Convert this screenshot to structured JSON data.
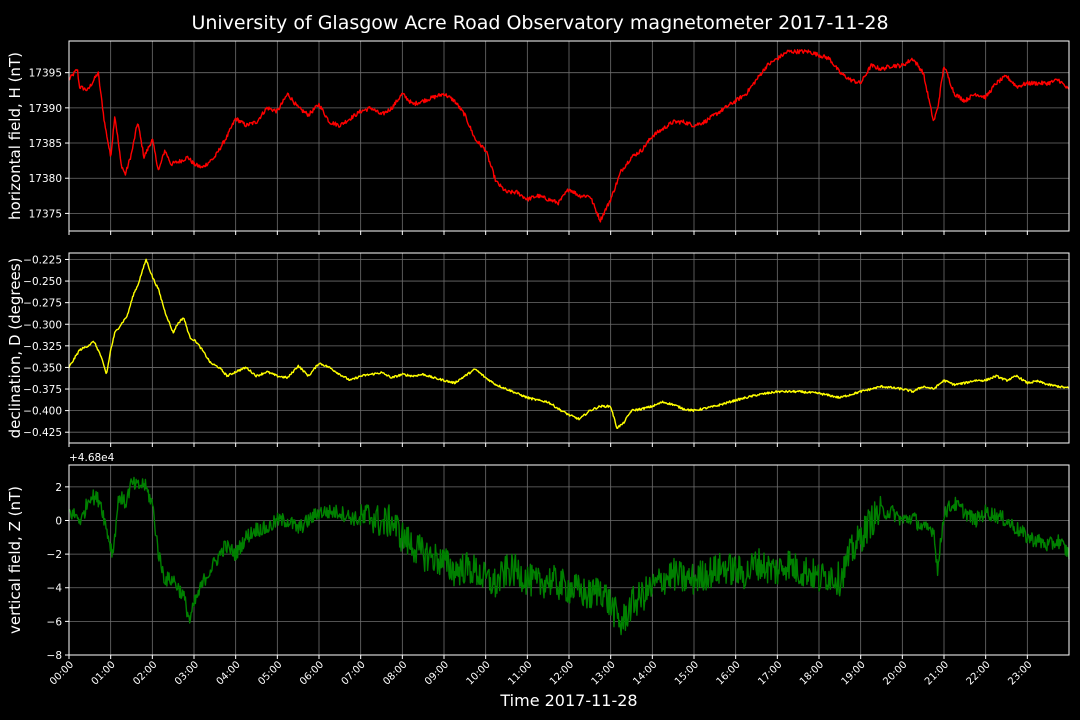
{
  "figure": {
    "title": "University of Glasgow Acre Road Observatory magnetometer 2017-11-28",
    "xlabel": "Time 2017-11-28",
    "background": "#000000",
    "axis_color": "#ffffff",
    "grid_color": "#6e6e6e"
  },
  "chart_data": [
    {
      "type": "line",
      "ylabel": "horizontal field, H (nT)",
      "offset_label": "",
      "color": "#ff0000",
      "grid": true,
      "xlim": [
        0,
        24
      ],
      "ylim": [
        17372.5,
        17399.5
      ],
      "yticks": [
        17375,
        17380,
        17385,
        17390,
        17395
      ],
      "yticklabels": [
        "17375",
        "17380",
        "17385",
        "17390",
        "17395"
      ],
      "series": [
        {
          "x": [
            0,
            0.2,
            0.25,
            0.45,
            0.7,
            0.85,
            1.0,
            1.1,
            1.25,
            1.35,
            1.5,
            1.65,
            1.8,
            2.0,
            2.15,
            2.3,
            2.45,
            2.7,
            2.85,
            3.0,
            3.2,
            3.5,
            3.8,
            4.0,
            4.25,
            4.5,
            4.75,
            5.0,
            5.25,
            5.5,
            5.75,
            6.0,
            6.25,
            6.5,
            6.75,
            7.0,
            7.25,
            7.5,
            7.75,
            8.0,
            8.25,
            8.5,
            8.75,
            9.0,
            9.25,
            9.5,
            9.75,
            10.0,
            10.25,
            10.5,
            10.75,
            11.0,
            11.25,
            11.5,
            11.75,
            12.0,
            12.25,
            12.5,
            12.75,
            13.0,
            13.25,
            13.5,
            13.75,
            14.0,
            14.25,
            14.5,
            14.75,
            15.0,
            15.25,
            15.5,
            15.75,
            16.0,
            16.25,
            16.5,
            16.75,
            17.0,
            17.25,
            17.5,
            17.75,
            18.0,
            18.25,
            18.5,
            18.75,
            19.0,
            19.25,
            19.5,
            19.75,
            20.0,
            20.25,
            20.5,
            20.75,
            20.85,
            21.0,
            21.25,
            21.5,
            21.75,
            22.0,
            22.25,
            22.5,
            22.75,
            23.0,
            23.25,
            23.5,
            23.75,
            24.0
          ],
          "y": [
            17394,
            17395.5,
            17393,
            17392.5,
            17395,
            17388,
            17383,
            17389,
            17382,
            17380.5,
            17383.5,
            17388,
            17383,
            17385.5,
            17381,
            17384,
            17382,
            17382.5,
            17383,
            17382,
            17381.5,
            17383,
            17386,
            17388.5,
            17387.5,
            17388,
            17390,
            17389.5,
            17392,
            17390,
            17389,
            17390.5,
            17388,
            17387.5,
            17388.5,
            17389.5,
            17390,
            17389,
            17390,
            17392,
            17390.5,
            17391,
            17391.5,
            17392,
            17391,
            17389,
            17385.5,
            17384,
            17379.5,
            17378,
            17378,
            17377,
            17377.5,
            17377,
            17376.5,
            17378.5,
            17377.5,
            17377.5,
            17374,
            17377,
            17381,
            17383,
            17384,
            17386,
            17387,
            17388,
            17388,
            17387.5,
            17388,
            17389,
            17390,
            17391,
            17392,
            17394,
            17396,
            17397,
            17398,
            17398,
            17398,
            17397.5,
            17397,
            17395,
            17394,
            17393.5,
            17396,
            17395.5,
            17396,
            17396,
            17397,
            17395,
            17388,
            17390,
            17396,
            17392,
            17391,
            17392,
            17391.5,
            17393.5,
            17394.5,
            17393,
            17393.5,
            17393.5,
            17393.5,
            17394,
            17392.5
          ]
        }
      ]
    },
    {
      "type": "line",
      "ylabel": "declination, D (degrees)",
      "offset_label": "",
      "color": "#ffff00",
      "grid": true,
      "xlim": [
        0,
        24
      ],
      "ylim": [
        -0.4375,
        -0.2175
      ],
      "yticks": [
        -0.425,
        -0.4,
        -0.375,
        -0.35,
        -0.325,
        -0.3,
        -0.275,
        -0.25,
        -0.225
      ],
      "yticklabels": [
        "−0.425",
        "−0.400",
        "−0.375",
        "−0.350",
        "−0.325",
        "−0.300",
        "−0.275",
        "−0.250",
        "−0.225"
      ],
      "series": [
        {
          "x": [
            0,
            0.25,
            0.45,
            0.6,
            0.75,
            0.9,
            1.0,
            1.1,
            1.25,
            1.4,
            1.55,
            1.65,
            1.75,
            1.85,
            2.0,
            2.15,
            2.3,
            2.5,
            2.6,
            2.75,
            2.9,
            3.05,
            3.2,
            3.4,
            3.6,
            3.8,
            4.0,
            4.25,
            4.5,
            4.75,
            5.0,
            5.25,
            5.5,
            5.75,
            6.0,
            6.25,
            6.5,
            6.75,
            7.0,
            7.25,
            7.5,
            7.75,
            8.0,
            8.25,
            8.5,
            8.75,
            9.0,
            9.25,
            9.5,
            9.75,
            10.0,
            10.25,
            10.5,
            10.75,
            11.0,
            11.25,
            11.5,
            11.75,
            12.0,
            12.25,
            12.5,
            12.75,
            13.0,
            13.15,
            13.3,
            13.5,
            13.75,
            14.0,
            14.25,
            14.5,
            14.75,
            15.0,
            15.5,
            16.0,
            16.5,
            17.0,
            17.5,
            18.0,
            18.5,
            19.0,
            19.5,
            20.0,
            20.25,
            20.5,
            20.75,
            21.0,
            21.25,
            21.5,
            21.75,
            22.0,
            22.25,
            22.5,
            22.75,
            23.0,
            23.25,
            23.5,
            23.75,
            24.0
          ],
          "y": [
            -0.35,
            -0.33,
            -0.325,
            -0.32,
            -0.335,
            -0.358,
            -0.33,
            -0.31,
            -0.3,
            -0.29,
            -0.265,
            -0.255,
            -0.24,
            -0.225,
            -0.245,
            -0.26,
            -0.285,
            -0.31,
            -0.3,
            -0.292,
            -0.315,
            -0.32,
            -0.33,
            -0.345,
            -0.35,
            -0.36,
            -0.355,
            -0.35,
            -0.36,
            -0.355,
            -0.36,
            -0.362,
            -0.348,
            -0.36,
            -0.345,
            -0.35,
            -0.358,
            -0.365,
            -0.36,
            -0.358,
            -0.356,
            -0.362,
            -0.358,
            -0.36,
            -0.358,
            -0.362,
            -0.365,
            -0.368,
            -0.36,
            -0.352,
            -0.362,
            -0.37,
            -0.375,
            -0.38,
            -0.385,
            -0.388,
            -0.39,
            -0.398,
            -0.405,
            -0.41,
            -0.4,
            -0.395,
            -0.395,
            -0.42,
            -0.415,
            -0.4,
            -0.398,
            -0.395,
            -0.39,
            -0.393,
            -0.398,
            -0.4,
            -0.395,
            -0.388,
            -0.382,
            -0.378,
            -0.378,
            -0.38,
            -0.385,
            -0.378,
            -0.372,
            -0.375,
            -0.378,
            -0.372,
            -0.375,
            -0.365,
            -0.37,
            -0.368,
            -0.365,
            -0.365,
            -0.36,
            -0.365,
            -0.36,
            -0.368,
            -0.366,
            -0.37,
            -0.372,
            -0.374
          ]
        }
      ]
    },
    {
      "type": "line",
      "ylabel": "vertical field, Z (nT)",
      "offset_label": "+4.68e4",
      "color": "#008000",
      "grid": true,
      "xlim": [
        0,
        24
      ],
      "ylim": [
        -8,
        3.3
      ],
      "yticks": [
        -8,
        -6,
        -4,
        -2,
        0,
        2
      ],
      "yticklabels": [
        "−8",
        "−6",
        "−4",
        "−2",
        "0",
        "2"
      ],
      "series": [
        {
          "x": [
            0,
            0.15,
            0.3,
            0.5,
            0.75,
            0.9,
            1.05,
            1.2,
            1.35,
            1.5,
            1.65,
            1.8,
            2.0,
            2.15,
            2.3,
            2.5,
            2.75,
            2.9,
            3.0,
            3.25,
            3.5,
            3.75,
            4.0,
            4.25,
            4.5,
            4.75,
            5.0,
            5.25,
            5.5,
            5.75,
            6.0,
            6.25,
            6.5,
            6.75,
            7.0,
            7.25,
            7.5,
            7.75,
            8.0,
            8.25,
            8.5,
            8.75,
            9.0,
            9.25,
            9.5,
            9.75,
            10.0,
            10.25,
            10.5,
            10.75,
            11.0,
            11.25,
            11.5,
            11.75,
            12.0,
            12.25,
            12.5,
            12.75,
            13.0,
            13.25,
            13.5,
            13.75,
            14.0,
            14.25,
            14.5,
            14.75,
            15.0,
            15.25,
            15.5,
            15.75,
            16.0,
            16.25,
            16.5,
            16.75,
            17.0,
            17.25,
            17.5,
            17.75,
            18.0,
            18.25,
            18.5,
            18.75,
            19.0,
            19.25,
            19.5,
            19.75,
            20.0,
            20.25,
            20.5,
            20.75,
            20.85,
            21.0,
            21.25,
            21.5,
            21.75,
            22.0,
            22.25,
            22.5,
            22.75,
            23.0,
            23.25,
            23.5,
            23.75,
            24.0
          ],
          "y": [
            0.5,
            0.3,
            0,
            1.5,
            1.2,
            -0.5,
            -2,
            1.5,
            1,
            2.2,
            2,
            2.2,
            1,
            -2,
            -3.5,
            -3.5,
            -4.5,
            -6,
            -5,
            -3.5,
            -2.5,
            -1.5,
            -2,
            -1,
            -0.5,
            -0.5,
            0,
            0,
            -0.5,
            0,
            0.5,
            0.5,
            0.5,
            0.2,
            0,
            0.3,
            -0.2,
            0,
            -1,
            -1.5,
            -2,
            -2.2,
            -2.5,
            -3,
            -2.8,
            -3,
            -3.5,
            -3.8,
            -3,
            -3,
            -3.5,
            -3.8,
            -3.5,
            -3.8,
            -4,
            -4.2,
            -4.5,
            -4,
            -5,
            -6.2,
            -5,
            -4.5,
            -4,
            -3.5,
            -3.2,
            -3.5,
            -3.5,
            -3.2,
            -3,
            -2.8,
            -3,
            -3.2,
            -2.5,
            -2.8,
            -3,
            -2.5,
            -3,
            -3,
            -3.5,
            -3.2,
            -3.5,
            -2,
            -1,
            0,
            0.5,
            0.5,
            0,
            0.2,
            -0.5,
            -0.5,
            -3,
            0.5,
            1,
            0.5,
            0,
            0.5,
            0.3,
            0,
            -0.5,
            -1,
            -1.2,
            -1.5,
            -1.2,
            -2
          ]
        }
      ]
    }
  ],
  "xaxis": {
    "ticks": [
      0,
      1,
      2,
      3,
      4,
      5,
      6,
      7,
      8,
      9,
      10,
      11,
      12,
      13,
      14,
      15,
      16,
      17,
      18,
      19,
      20,
      21,
      22,
      23
    ],
    "ticklabels": [
      "00:00",
      "01:00",
      "02:00",
      "03:00",
      "04:00",
      "05:00",
      "06:00",
      "07:00",
      "08:00",
      "09:00",
      "10:00",
      "11:00",
      "12:00",
      "13:00",
      "14:00",
      "15:00",
      "16:00",
      "17:00",
      "18:00",
      "19:00",
      "20:00",
      "21:00",
      "22:00",
      "23:00"
    ]
  }
}
